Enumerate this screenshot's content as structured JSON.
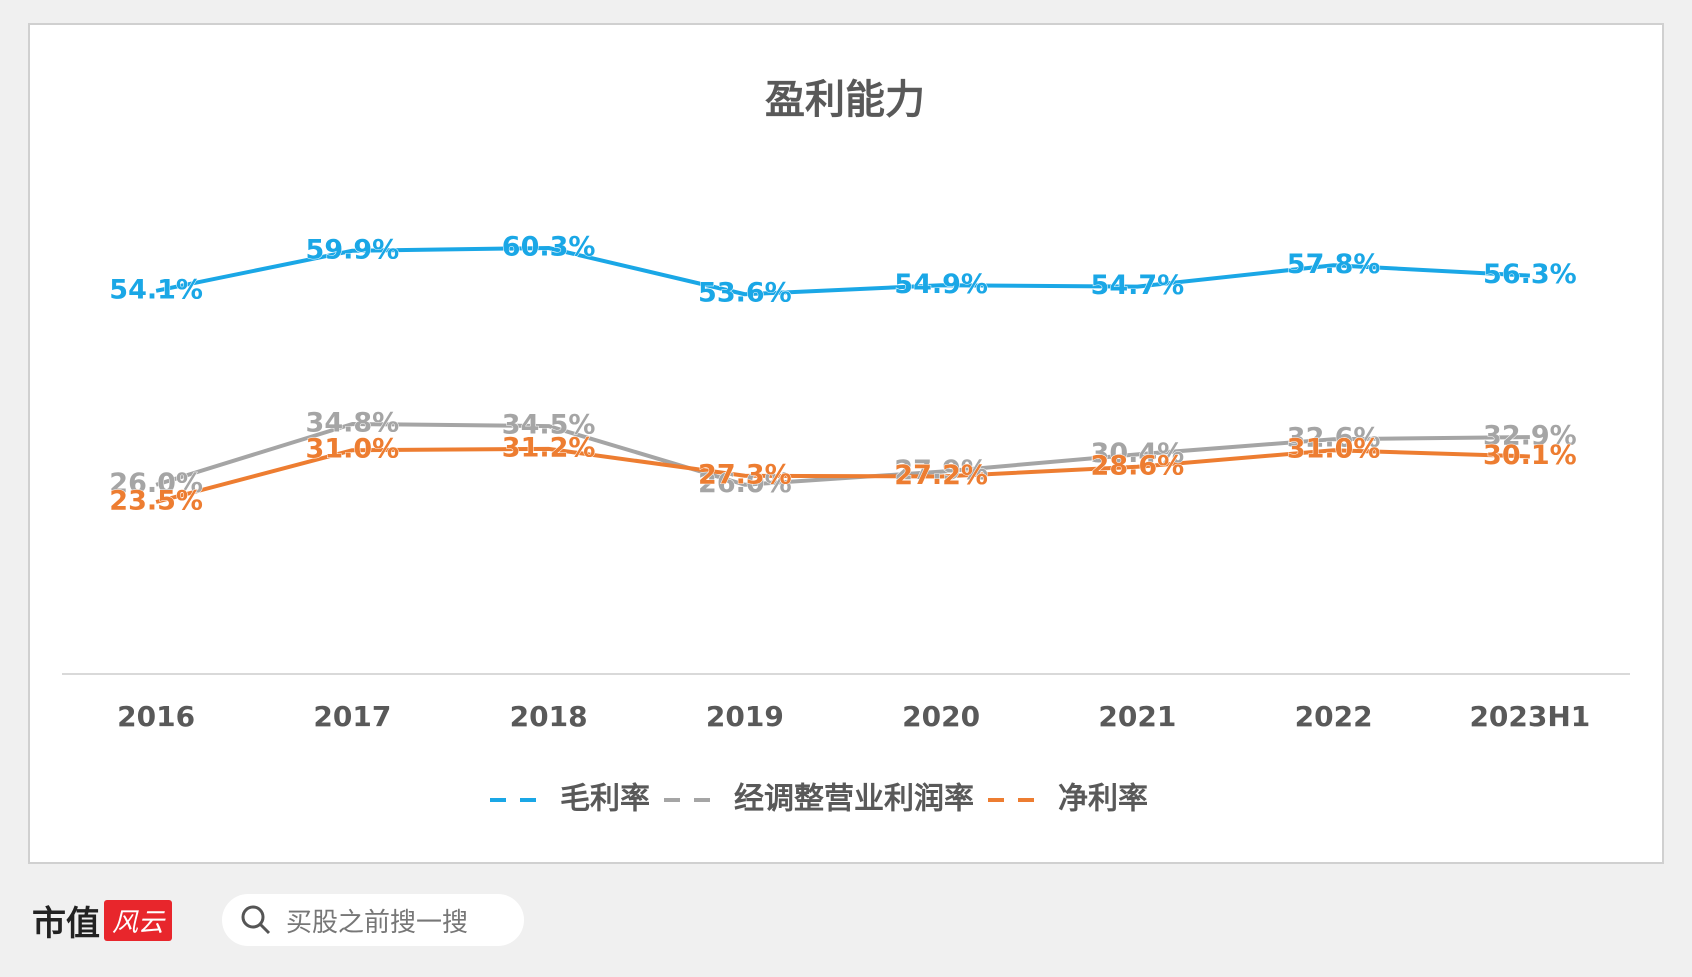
{
  "chart_data": {
    "type": "line",
    "title": "盈利能力",
    "categories": [
      "2016",
      "2017",
      "2018",
      "2019",
      "2020",
      "2021",
      "2022",
      "2023H1"
    ],
    "series": [
      {
        "name": "毛利率",
        "color": "#1aa7e6",
        "values": [
          54.1,
          59.9,
          60.3,
          53.6,
          54.9,
          54.7,
          57.8,
          56.3
        ],
        "value_labels": [
          "54.1%",
          "59.9%",
          "60.3%",
          "53.6%",
          "54.9%",
          "54.7%",
          "57.8%",
          "56.3%"
        ]
      },
      {
        "name": "经调整营业利润率",
        "color": "#a5a5a5",
        "values": [
          26.0,
          34.8,
          34.5,
          26.0,
          27.9,
          30.4,
          32.6,
          32.9
        ],
        "value_labels": [
          "26.0%",
          "34.8%",
          "34.5%",
          "26.0%",
          "27.9%",
          "30.4%",
          "32.6%",
          "32.9%"
        ]
      },
      {
        "name": "净利率",
        "color": "#ed7d31",
        "values": [
          23.5,
          31.0,
          31.2,
          27.3,
          27.2,
          28.6,
          31.0,
          30.1
        ],
        "value_labels": [
          "23.5%",
          "31.0%",
          "31.2%",
          "27.3%",
          "27.2%",
          "28.6%",
          "31.0%",
          "30.1%"
        ]
      }
    ],
    "legend": "bottom"
  },
  "footer": {
    "logo": "市值",
    "badge": "风云",
    "search": "买股之前搜一搜"
  }
}
